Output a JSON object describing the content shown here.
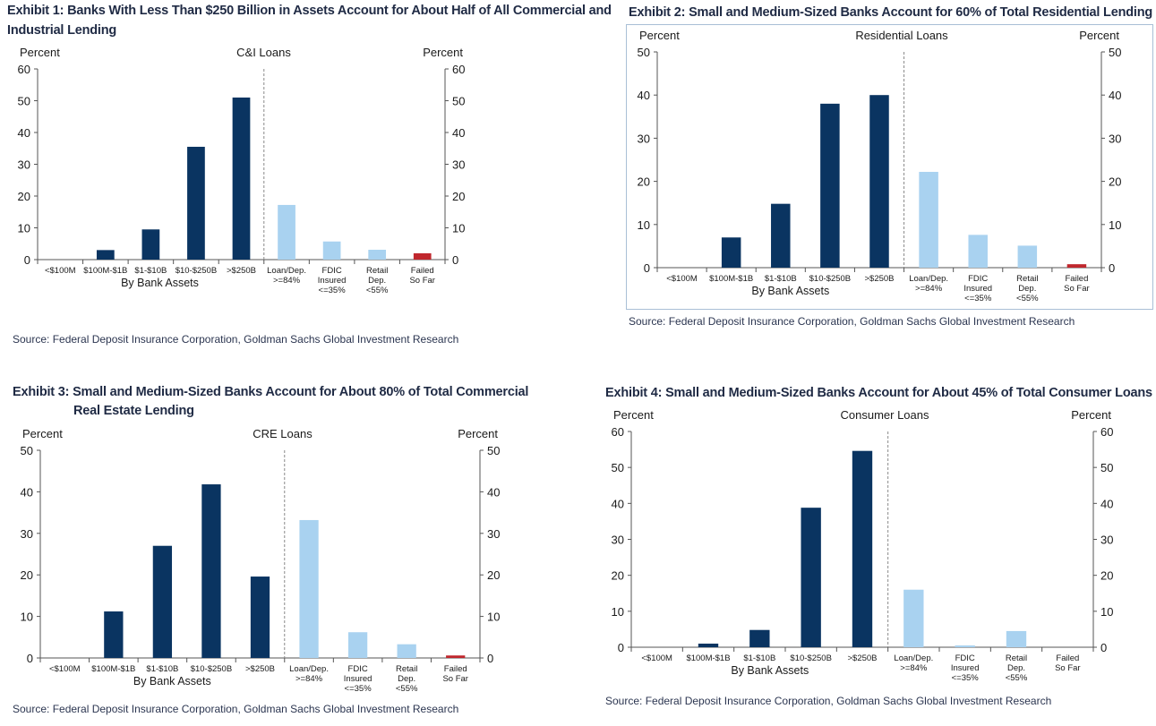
{
  "colors": {
    "dark": "#0a3461",
    "light": "#a9d2f0",
    "red": "#c0272d",
    "axis": "#555555"
  },
  "source_text": "Source: Federal Deposit Insurance Corporation, Goldman Sachs Global Investment Research",
  "axis_left_label": "Percent",
  "axis_right_label": "Percent",
  "group_label": "By Bank Assets",
  "chart_data": [
    {
      "id": "ex1",
      "type": "bar",
      "exhibit_title": "Exhibit 1: Banks With Less Than $250 Billion in Assets Account for About Half of All Commercial and",
      "exhibit_title_line2": "Industrial Lending",
      "title": "C&I Loans",
      "categories": [
        "<$100M",
        "$100M-$1B",
        "$1-$10B",
        "$10-$250B",
        ">$250B",
        "Loan/Dep.\n>=84%",
        "FDIC\nInsured\n<=35%",
        "Retail\nDep.\n<55%",
        "Failed\nSo Far"
      ],
      "values": [
        0,
        3,
        9.5,
        35.5,
        51,
        17.2,
        5.7,
        3.1,
        2
      ],
      "colors": [
        "dark",
        "dark",
        "dark",
        "dark",
        "dark",
        "light",
        "light",
        "light",
        "red"
      ],
      "ylim": [
        0,
        60
      ],
      "yticks": [
        0,
        10,
        20,
        30,
        40,
        50,
        60
      ]
    },
    {
      "id": "ex2",
      "type": "bar",
      "exhibit_title": "Exhibit 2: Small and Medium-Sized Banks Account for 60% of Total Residential Lending",
      "title": "Residential Loans",
      "categories": [
        "<$100M",
        "$100M-$1B",
        "$1-$10B",
        "$10-$250B",
        ">$250B",
        "Loan/Dep.\n>=84%",
        "FDIC\nInsured\n<=35%",
        "Retail\nDep.\n<55%",
        "Failed\nSo Far"
      ],
      "values": [
        0,
        7,
        14.8,
        38,
        40,
        22.2,
        7.6,
        5.1,
        0.8
      ],
      "colors": [
        "dark",
        "dark",
        "dark",
        "dark",
        "dark",
        "light",
        "light",
        "light",
        "red"
      ],
      "ylim": [
        0,
        50
      ],
      "yticks": [
        0,
        10,
        20,
        30,
        40,
        50
      ]
    },
    {
      "id": "ex3",
      "type": "bar",
      "exhibit_title": "Exhibit 3: Small and Medium-Sized Banks Account for About 80% of Total Commercial",
      "exhibit_title_line2": "Real Estate Lending",
      "title": "CRE Loans",
      "categories": [
        "<$100M",
        "$100M-$1B",
        "$1-$10B",
        "$10-$250B",
        ">$250B",
        "Loan/Dep.\n>=84%",
        "FDIC\nInsured\n<=35%",
        "Retail\nDep.\n<55%",
        "Failed\nSo Far"
      ],
      "values": [
        0,
        11.2,
        27,
        41.8,
        19.6,
        33.2,
        6.2,
        3.3,
        0.6
      ],
      "colors": [
        "dark",
        "dark",
        "dark",
        "dark",
        "dark",
        "light",
        "light",
        "light",
        "red"
      ],
      "ylim": [
        0,
        50
      ],
      "yticks": [
        0,
        10,
        20,
        30,
        40,
        50
      ]
    },
    {
      "id": "ex4",
      "type": "bar",
      "exhibit_title": "Exhibit 4: Small and Medium-Sized Banks Account for About 45% of Total Consumer Loans",
      "title": "Consumer Loans",
      "categories": [
        "<$100M",
        "$100M-$1B",
        "$1-$10B",
        "$10-$250B",
        ">$250B",
        "Loan/Dep.\n>=84%",
        "FDIC\nInsured\n<=35%",
        "Retail\nDep.\n<55%",
        "Failed\nSo Far"
      ],
      "values": [
        0,
        1,
        4.8,
        38.8,
        54.6,
        16,
        0.5,
        4.5,
        0
      ],
      "colors": [
        "dark",
        "dark",
        "dark",
        "dark",
        "dark",
        "light",
        "light",
        "light",
        "red"
      ],
      "ylim": [
        0,
        60
      ],
      "yticks": [
        0,
        10,
        20,
        30,
        40,
        50,
        60
      ]
    }
  ]
}
